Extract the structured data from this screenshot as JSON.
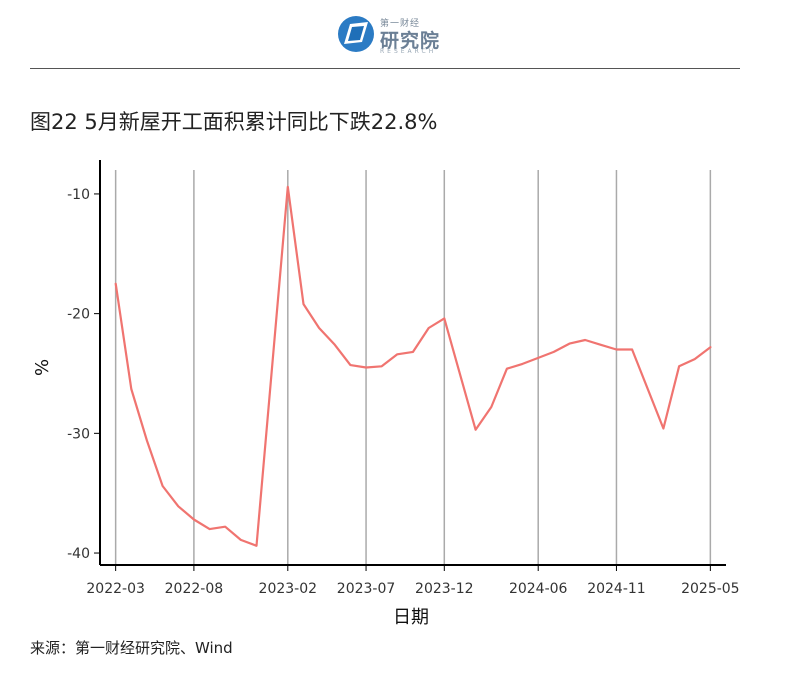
{
  "logo": {
    "top": "第一财经",
    "main": "研究院",
    "sub": "RESEARCH"
  },
  "title": "图22 5月新屋开工面积累计同比下跌22.8%",
  "source": "来源：第一财经研究院、Wind",
  "colors": {
    "line": "#f07470",
    "grid": "#aaaaaa",
    "axis": "#000000"
  },
  "chart_data": {
    "type": "line",
    "xlabel": "日期",
    "ylabel": "%",
    "ylim": [
      -41,
      -8
    ],
    "yticks": [
      -10,
      -20,
      -30,
      -40
    ],
    "grid": "vertical lines at x tick dates",
    "xlim": [
      "2022-02",
      "2025-06"
    ],
    "xticks": [
      "2022-03",
      "2022-08",
      "2023-02",
      "2023-07",
      "2023-12",
      "2024-06",
      "2024-11",
      "2025-05"
    ],
    "x": [
      "2022-03",
      "2022-04",
      "2022-05",
      "2022-06",
      "2022-07",
      "2022-08",
      "2022-09",
      "2022-10",
      "2022-11",
      "2022-12",
      "2023-02",
      "2023-03",
      "2023-04",
      "2023-05",
      "2023-06",
      "2023-07",
      "2023-08",
      "2023-09",
      "2023-10",
      "2023-11",
      "2023-12",
      "2024-02",
      "2024-03",
      "2024-04",
      "2024-05",
      "2024-06",
      "2024-07",
      "2024-08",
      "2024-09",
      "2024-10",
      "2024-11",
      "2024-12",
      "2025-02",
      "2025-03",
      "2025-04",
      "2025-05"
    ],
    "series": [
      {
        "values": [
          -17.5,
          -26.3,
          -30.6,
          -34.4,
          -36.1,
          -37.2,
          -38.0,
          -37.8,
          -38.9,
          -39.4,
          -9.4,
          -19.2,
          -21.2,
          -22.6,
          -24.3,
          -24.5,
          -24.4,
          -23.4,
          -23.2,
          -21.2,
          -20.4,
          -29.7,
          -27.8,
          -24.6,
          -24.2,
          -23.7,
          -23.2,
          -22.5,
          -22.2,
          -22.6,
          -23.0,
          -23.0,
          -29.6,
          -24.4,
          -23.8,
          -22.8
        ]
      }
    ]
  }
}
